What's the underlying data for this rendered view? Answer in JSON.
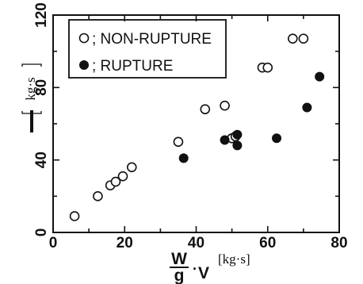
{
  "chart_data": {
    "type": "scatter",
    "title": "",
    "xlabel": {
      "numerator": "W",
      "denominator": "g",
      "suffix": "V",
      "unit": "kg·s"
    },
    "ylabel": {
      "symbol": "I",
      "unit": "kg·s"
    },
    "xlim": [
      0,
      80
    ],
    "ylim": [
      0,
      120
    ],
    "x_ticks": [
      "0",
      "20",
      "40",
      "60",
      "80"
    ],
    "y_ticks": [
      "0",
      "40",
      "80",
      "120"
    ],
    "grid": false,
    "legend_position": "top-left",
    "series": [
      {
        "name": "NON-RUPTURE",
        "marker": "open-circle",
        "points": [
          [
            6,
            9
          ],
          [
            12.5,
            20
          ],
          [
            16,
            26
          ],
          [
            17.5,
            28
          ],
          [
            19.5,
            31
          ],
          [
            22,
            36
          ],
          [
            35,
            50
          ],
          [
            42.5,
            68
          ],
          [
            48,
            70
          ],
          [
            50,
            52
          ],
          [
            51,
            53
          ],
          [
            58.5,
            91
          ],
          [
            60,
            91
          ],
          [
            67,
            107
          ],
          [
            70,
            107
          ]
        ]
      },
      {
        "name": "RUPTURE",
        "marker": "filled-circle",
        "points": [
          [
            36.5,
            41
          ],
          [
            48,
            51
          ],
          [
            51.5,
            54
          ],
          [
            51.5,
            48
          ],
          [
            62.5,
            52
          ],
          [
            71,
            69
          ],
          [
            74.5,
            86
          ]
        ]
      }
    ]
  },
  "legend": {
    "nonrupture_label": "; NON-RUPTURE",
    "rupture_label": "; RUPTURE"
  },
  "colors": {
    "ink": "#111111",
    "background": "#ffffff"
  }
}
